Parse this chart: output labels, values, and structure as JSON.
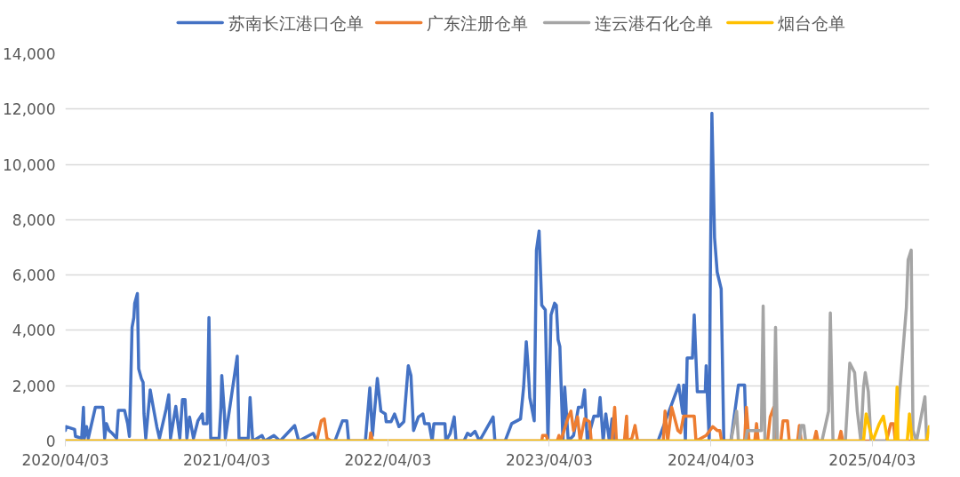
{
  "chart_data": {
    "type": "line",
    "xlim": [
      "2020-04-03",
      "2025-08-10"
    ],
    "ylim": [
      0,
      14000
    ],
    "xticks": [
      {
        "value": "2020-04-03",
        "label": "2020/04/03"
      },
      {
        "value": "2021-04-03",
        "label": "2021/04/03"
      },
      {
        "value": "2022-04-03",
        "label": "2022/04/03"
      },
      {
        "value": "2023-04-03",
        "label": "2023/04/03"
      },
      {
        "value": "2024-04-03",
        "label": "2024/04/03"
      },
      {
        "value": "2025-04-03",
        "label": "2025/04/03"
      }
    ],
    "yticks": [
      0,
      {
        "value": 2000,
        "label": "2,000"
      },
      {
        "value": 4000,
        "label": "4,000"
      },
      {
        "value": 6000,
        "label": "6,000"
      },
      {
        "value": 8000,
        "label": "8,000"
      },
      {
        "value": 10000,
        "label": "10,000"
      },
      {
        "value": 12000,
        "label": "12,000"
      },
      {
        "value": 14000,
        "label": "14,000"
      }
    ],
    "grid": "y",
    "legend": "top",
    "marker": "none",
    "line_style": "solid",
    "series": [
      {
        "name": "苏南长江港口仓单",
        "color": "#4472c4",
        "x": [
          "2020-04-03",
          "2020-04-05",
          "2020-04-24",
          "2020-04-26",
          "2020-05-10",
          "2020-05-14",
          "2020-05-16",
          "2020-05-21",
          "2020-05-25",
          "2020-06-10",
          "2020-06-27",
          "2020-07-01",
          "2020-07-05",
          "2020-07-11",
          "2020-07-18",
          "2020-07-28",
          "2020-08-01",
          "2020-08-15",
          "2020-08-22",
          "2020-08-26",
          "2020-09-01",
          "2020-09-05",
          "2020-09-07",
          "2020-09-13",
          "2020-09-16",
          "2020-09-22",
          "2020-09-26",
          "2020-09-28",
          "2020-10-02",
          "2020-10-12",
          "2020-10-19",
          "2020-10-27",
          "2020-11-02",
          "2020-11-17",
          "2020-11-23",
          "2020-11-27",
          "2020-12-09",
          "2020-12-18",
          "2020-12-24",
          "2020-12-30",
          "2021-01-03",
          "2021-01-09",
          "2021-01-18",
          "2021-01-28",
          "2021-02-07",
          "2021-02-09",
          "2021-02-18",
          "2021-02-22",
          "2021-02-26",
          "2021-03-17",
          "2021-03-21",
          "2021-03-23",
          "2021-03-29",
          "2021-03-31",
          "2021-04-27",
          "2021-05-01",
          "2021-05-22",
          "2021-05-26",
          "2021-06-01",
          "2021-06-22",
          "2021-06-28",
          "2021-07-19",
          "2021-08-02",
          "2021-09-04",
          "2021-09-13",
          "2021-10-16",
          "2021-10-24",
          "2021-12-04",
          "2021-12-21",
          "2021-12-31",
          "2022-01-04",
          "2022-02-11",
          "2022-02-21",
          "2022-02-27",
          "2022-03-10",
          "2022-03-18",
          "2022-03-28",
          "2022-03-30",
          "2022-04-10",
          "2022-04-18",
          "2022-04-28",
          "2022-05-09",
          "2022-05-19",
          "2022-05-25",
          "2022-05-31",
          "2022-06-11",
          "2022-06-21",
          "2022-06-25",
          "2022-07-05",
          "2022-07-12",
          "2022-07-16",
          "2022-08-10",
          "2022-08-12",
          "2022-08-22",
          "2022-08-31",
          "2022-09-04",
          "2022-09-22",
          "2022-09-30",
          "2022-10-07",
          "2022-10-17",
          "2022-10-27",
          "2022-11-27",
          "2022-12-01",
          "2022-12-24",
          "2023-01-08",
          "2023-01-28",
          "2023-02-04",
          "2023-02-10",
          "2023-02-14",
          "2023-02-18",
          "2023-02-28",
          "2023-03-05",
          "2023-03-11",
          "2023-03-17",
          "2023-03-25",
          "2023-03-31",
          "2023-04-07",
          "2023-04-15",
          "2023-04-19",
          "2023-04-23",
          "2023-04-27",
          "2023-05-04",
          "2023-05-08",
          "2023-05-16",
          "2023-05-28",
          "2023-06-08",
          "2023-06-16",
          "2023-06-22",
          "2023-06-28",
          "2023-07-13",
          "2023-07-23",
          "2023-07-27",
          "2023-08-03",
          "2023-08-09",
          "2023-08-17",
          "2023-08-23",
          "2023-08-29",
          "2023-12-05",
          "2024-01-21",
          "2024-01-30",
          "2024-02-01",
          "2024-02-05",
          "2024-02-09",
          "2024-02-21",
          "2024-02-25",
          "2024-03-03",
          "2024-03-21",
          "2024-03-23",
          "2024-03-30",
          "2024-04-01",
          "2024-04-05",
          "2024-04-11",
          "2024-04-17",
          "2024-04-26",
          "2024-05-02",
          "2024-05-18",
          "2024-06-04",
          "2024-06-18",
          "2024-06-22"
        ],
        "values": [
          380,
          520,
          420,
          170,
          100,
          1220,
          100,
          520,
          100,
          1220,
          1220,
          100,
          630,
          380,
          280,
          100,
          1110,
          1110,
          630,
          170,
          4110,
          4460,
          4980,
          5330,
          2610,
          2260,
          2120,
          980,
          100,
          1850,
          1220,
          520,
          100,
          1150,
          1670,
          100,
          1250,
          100,
          1500,
          1500,
          100,
          870,
          100,
          730,
          980,
          630,
          630,
          4460,
          100,
          100,
          1220,
          2370,
          980,
          100,
          3070,
          100,
          100,
          1570,
          0,
          200,
          0,
          200,
          0,
          560,
          0,
          280,
          0,
          0,
          730,
          730,
          0,
          0,
          1920,
          200,
          2260,
          1080,
          980,
          700,
          700,
          980,
          520,
          700,
          2720,
          2370,
          380,
          870,
          980,
          630,
          630,
          0,
          630,
          630,
          0,
          280,
          870,
          0,
          0,
          280,
          200,
          350,
          0,
          870,
          0,
          0,
          630,
          800,
          1950,
          3590,
          2720,
          1570,
          730,
          6900,
          7590,
          4910,
          4740,
          0,
          4560,
          4980,
          4910,
          3660,
          3410,
          0,
          1950,
          0,
          200,
          1220,
          1220,
          1850,
          0,
          900,
          900,
          1570,
          0,
          980,
          0,
          800,
          0,
          0,
          2020,
          1000,
          2020,
          0,
          3000,
          3000,
          4560,
          1780,
          1780,
          2720,
          0,
          5150,
          11850,
          7350,
          6100,
          5500,
          0,
          0,
          2020,
          2020,
          0
        ]
      },
      {
        "name": "广东注册仓单",
        "color": "#ed7d31",
        "x": [
          "2020-04-03",
          "2021-10-24",
          "2021-11-03",
          "2021-11-10",
          "2021-11-16",
          "2021-11-26",
          "2022-02-21",
          "2022-02-23",
          "2022-02-27",
          "2023-03-17",
          "2023-03-19",
          "2023-03-27",
          "2023-03-31",
          "2023-04-21",
          "2023-04-25",
          "2023-04-29",
          "2023-05-16",
          "2023-05-22",
          "2023-05-28",
          "2023-06-06",
          "2023-06-12",
          "2023-06-22",
          "2023-07-03",
          "2023-07-07",
          "2023-08-23",
          "2023-08-29",
          "2023-09-02",
          "2023-09-20",
          "2023-09-25",
          "2023-09-27",
          "2023-10-07",
          "2023-10-14",
          "2023-10-20",
          "2023-12-17",
          "2023-12-21",
          "2023-12-27",
          "2024-01-05",
          "2024-01-11",
          "2024-01-19",
          "2024-01-25",
          "2024-02-01",
          "2024-02-25",
          "2024-02-29",
          "2024-03-23",
          "2024-04-07",
          "2024-04-17",
          "2024-04-23",
          "2024-04-27",
          "2024-06-18",
          "2024-06-22",
          "2024-06-28",
          "2024-07-11",
          "2024-07-15",
          "2024-07-19",
          "2024-08-09",
          "2024-08-15",
          "2024-08-23",
          "2024-08-27",
          "2024-09-08",
          "2024-09-13",
          "2024-09-23",
          "2024-09-27",
          "2024-10-16",
          "2024-10-20",
          "2024-10-24",
          "2024-11-22",
          "2024-11-27",
          "2024-12-01",
          "2025-01-17",
          "2025-01-22",
          "2025-01-26",
          "2025-05-05",
          "2025-05-15",
          "2025-05-21",
          "2025-05-25",
          "2025-08-06"
        ],
        "values": [
          0,
          0,
          730,
          800,
          100,
          0,
          0,
          300,
          0,
          0,
          200,
          200,
          0,
          0,
          200,
          0,
          870,
          1080,
          380,
          870,
          0,
          800,
          700,
          0,
          0,
          1220,
          0,
          0,
          900,
          0,
          100,
          560,
          0,
          0,
          1080,
          0,
          1220,
          870,
          380,
          300,
          900,
          900,
          0,
          200,
          520,
          380,
          380,
          0,
          0,
          1220,
          0,
          0,
          630,
          0,
          0,
          870,
          1220,
          0,
          0,
          730,
          730,
          0,
          0,
          560,
          0,
          0,
          350,
          0,
          0,
          350,
          0,
          0,
          630,
          630,
          0,
          0
        ]
      },
      {
        "name": "连云港石化仓单",
        "color": "#a5a5a5",
        "x": [
          "2020-04-03",
          "2024-05-18",
          "2024-05-31",
          "2024-06-04",
          "2024-06-20",
          "2024-06-24",
          "2024-07-26",
          "2024-07-30",
          "2024-08-03",
          "2024-08-23",
          "2024-08-27",
          "2024-08-31",
          "2024-10-20",
          "2024-10-24",
          "2024-10-30",
          "2024-11-03",
          "2024-12-10",
          "2024-12-25",
          "2024-12-29",
          "2025-01-04",
          "2025-02-01",
          "2025-02-11",
          "2025-02-22",
          "2025-02-28",
          "2025-03-08",
          "2025-03-14",
          "2025-03-18",
          "2025-03-25",
          "2025-03-31",
          "2025-05-26",
          "2025-06-19",
          "2025-06-23",
          "2025-06-30",
          "2025-07-04",
          "2025-07-12",
          "2025-07-31",
          "2025-08-04",
          "2025-08-06"
        ],
        "values": [
          0,
          0,
          1080,
          0,
          0,
          380,
          380,
          4880,
          0,
          0,
          4110,
          0,
          0,
          560,
          560,
          0,
          0,
          1080,
          4630,
          0,
          0,
          2820,
          2470,
          1080,
          0,
          1920,
          2470,
          1780,
          0,
          0,
          4810,
          6550,
          6900,
          380,
          0,
          1600,
          0,
          0
        ]
      },
      {
        "name": "烟台仓单",
        "color": "#ffc000",
        "x": [
          "2020-04-03",
          "2025-03-14",
          "2025-03-20",
          "2025-03-24",
          "2025-04-04",
          "2025-04-18",
          "2025-04-28",
          "2025-05-08",
          "2025-05-25",
          "2025-05-29",
          "2025-05-31",
          "2025-06-21",
          "2025-06-26",
          "2025-07-02",
          "2025-08-04",
          "2025-08-10"
        ],
        "values": [
          0,
          0,
          980,
          700,
          0,
          600,
          900,
          0,
          0,
          1950,
          0,
          0,
          980,
          0,
          0,
          520
        ]
      }
    ]
  }
}
